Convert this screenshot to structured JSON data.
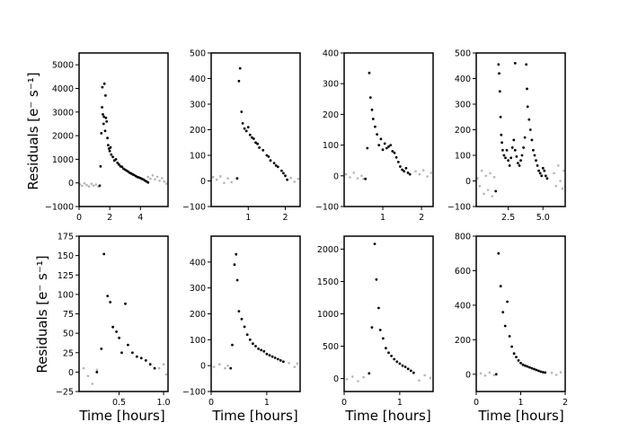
{
  "figure": {
    "ylabel_top": "Residuals [e⁻ s⁻¹]",
    "ylabel_bottom": "Residuals [e⁻ s⁻¹]",
    "xlabel": "Time [hours]"
  },
  "chart_data": [
    {
      "type": "scatter",
      "panel": "top-1",
      "xlim": [
        0,
        5.8
      ],
      "ylim": [
        -1000,
        5500
      ],
      "xticks": [
        0,
        2,
        4
      ],
      "xticklabels": [
        "0",
        "2",
        "4"
      ],
      "yticks": [
        -1000,
        0,
        1000,
        2000,
        3000,
        4000,
        5000
      ],
      "yticklabels": [
        "−1000",
        "0",
        "1000",
        "2000",
        "3000",
        "4000",
        "5000"
      ],
      "baseline": [
        [
          0.05,
          -60
        ],
        [
          0.2,
          -130
        ],
        [
          0.35,
          -20
        ],
        [
          0.5,
          -90
        ],
        [
          0.65,
          -150
        ],
        [
          0.8,
          -40
        ],
        [
          0.95,
          -120
        ],
        [
          1.1,
          -70
        ],
        [
          1.25,
          -160
        ],
        [
          4.5,
          250
        ],
        [
          4.65,
          180
        ],
        [
          4.8,
          320
        ],
        [
          4.95,
          150
        ],
        [
          5.1,
          260
        ],
        [
          5.25,
          90
        ],
        [
          5.4,
          200
        ],
        [
          5.55,
          60
        ],
        [
          5.7,
          -30
        ]
      ],
      "event": [
        [
          1.35,
          -120
        ],
        [
          1.4,
          700
        ],
        [
          1.45,
          2100
        ],
        [
          1.5,
          3200
        ],
        [
          1.52,
          4050
        ],
        [
          1.55,
          2900
        ],
        [
          1.6,
          2500
        ],
        [
          1.62,
          2800
        ],
        [
          1.65,
          4200
        ],
        [
          1.7,
          2200
        ],
        [
          1.72,
          3700
        ],
        [
          1.75,
          2750
        ],
        [
          1.8,
          2600
        ],
        [
          1.85,
          1900
        ],
        [
          1.9,
          1600
        ],
        [
          1.95,
          1450
        ],
        [
          2.0,
          1350
        ],
        [
          2.05,
          1500
        ],
        [
          2.1,
          1200
        ],
        [
          2.2,
          1100
        ],
        [
          2.3,
          950
        ],
        [
          2.4,
          1000
        ],
        [
          2.5,
          850
        ],
        [
          2.6,
          780
        ],
        [
          2.7,
          700
        ],
        [
          2.8,
          680
        ],
        [
          2.9,
          600
        ],
        [
          3.0,
          560
        ],
        [
          3.1,
          520
        ],
        [
          3.2,
          480
        ],
        [
          3.3,
          430
        ],
        [
          3.4,
          400
        ],
        [
          3.5,
          360
        ],
        [
          3.6,
          330
        ],
        [
          3.7,
          290
        ],
        [
          3.8,
          250
        ],
        [
          3.9,
          230
        ],
        [
          4.0,
          200
        ],
        [
          4.1,
          170
        ],
        [
          4.2,
          140
        ],
        [
          4.3,
          100
        ],
        [
          4.4,
          60
        ],
        [
          4.5,
          20
        ]
      ]
    },
    {
      "type": "scatter",
      "panel": "top-2",
      "xlim": [
        0,
        2.4
      ],
      "ylim": [
        -100,
        500
      ],
      "xticks": [
        1,
        2
      ],
      "xticklabels": [
        "1",
        "2"
      ],
      "yticks": [
        -100,
        0,
        100,
        200,
        300,
        400,
        500
      ],
      "yticklabels": [
        "−100",
        "0",
        "100",
        "200",
        "300",
        "400",
        "500"
      ],
      "baseline": [
        [
          0.05,
          15
        ],
        [
          0.15,
          5
        ],
        [
          0.25,
          18
        ],
        [
          0.35,
          -8
        ],
        [
          0.45,
          10
        ],
        [
          0.55,
          -5
        ],
        [
          2.15,
          12
        ],
        [
          2.25,
          -3
        ],
        [
          2.35,
          8
        ]
      ],
      "event": [
        [
          0.7,
          10
        ],
        [
          0.75,
          390
        ],
        [
          0.78,
          440
        ],
        [
          0.82,
          270
        ],
        [
          0.85,
          225
        ],
        [
          0.9,
          205
        ],
        [
          0.95,
          195
        ],
        [
          1.0,
          210
        ],
        [
          1.05,
          180
        ],
        [
          1.1,
          170
        ],
        [
          1.15,
          165
        ],
        [
          1.2,
          150
        ],
        [
          1.25,
          145
        ],
        [
          1.3,
          130
        ],
        [
          1.4,
          120
        ],
        [
          1.5,
          100
        ],
        [
          1.55,
          95
        ],
        [
          1.6,
          80
        ],
        [
          1.7,
          70
        ],
        [
          1.75,
          60
        ],
        [
          1.8,
          55
        ],
        [
          1.9,
          40
        ],
        [
          1.95,
          30
        ],
        [
          2.0,
          20
        ],
        [
          2.05,
          5
        ]
      ]
    },
    {
      "type": "scatter",
      "panel": "top-3",
      "xlim": [
        0,
        2.3
      ],
      "ylim": [
        -100,
        400
      ],
      "xticks": [
        1,
        2
      ],
      "xticklabels": [
        "1",
        "2"
      ],
      "yticks": [
        -100,
        0,
        100,
        200,
        300,
        400
      ],
      "yticklabels": [
        "−100",
        "0",
        "100",
        "200",
        "300",
        "400"
      ],
      "baseline": [
        [
          0.05,
          5
        ],
        [
          0.15,
          -5
        ],
        [
          0.25,
          10
        ],
        [
          0.35,
          -8
        ],
        [
          0.45,
          0
        ],
        [
          0.5,
          -10
        ],
        [
          1.85,
          15
        ],
        [
          1.95,
          5
        ],
        [
          2.05,
          18
        ],
        [
          2.15,
          -2
        ],
        [
          2.25,
          10
        ]
      ],
      "event": [
        [
          0.55,
          -10
        ],
        [
          0.6,
          90
        ],
        [
          0.65,
          335
        ],
        [
          0.68,
          255
        ],
        [
          0.72,
          215
        ],
        [
          0.75,
          185
        ],
        [
          0.8,
          160
        ],
        [
          0.85,
          135
        ],
        [
          0.9,
          100
        ],
        [
          0.95,
          120
        ],
        [
          1.0,
          85
        ],
        [
          1.05,
          105
        ],
        [
          1.1,
          90
        ],
        [
          1.15,
          95
        ],
        [
          1.2,
          100
        ],
        [
          1.25,
          80
        ],
        [
          1.3,
          75
        ],
        [
          1.35,
          60
        ],
        [
          1.4,
          45
        ],
        [
          1.45,
          30
        ],
        [
          1.5,
          20
        ],
        [
          1.55,
          15
        ],
        [
          1.6,
          25
        ],
        [
          1.65,
          10
        ],
        [
          1.7,
          5
        ]
      ]
    },
    {
      "type": "scatter",
      "panel": "top-4",
      "xlim": [
        0.2,
        6.6
      ],
      "ylim": [
        -100,
        500
      ],
      "xticks": [
        2.5,
        5.0
      ],
      "xticklabels": [
        "2.5",
        "5.0"
      ],
      "yticks": [
        -100,
        0,
        100,
        200,
        300,
        400,
        500
      ],
      "yticklabels": [
        "−100",
        "0",
        "100",
        "200",
        "300",
        "400",
        "500"
      ],
      "baseline": [
        [
          0.3,
          10
        ],
        [
          0.45,
          -20
        ],
        [
          0.6,
          40
        ],
        [
          0.75,
          -50
        ],
        [
          0.9,
          20
        ],
        [
          1.05,
          -35
        ],
        [
          1.2,
          30
        ],
        [
          1.35,
          -60
        ],
        [
          1.5,
          15
        ],
        [
          5.8,
          30
        ],
        [
          5.95,
          -20
        ],
        [
          6.1,
          60
        ],
        [
          6.25,
          0
        ],
        [
          6.4,
          -30
        ],
        [
          6.5,
          40
        ]
      ],
      "event": [
        [
          1.6,
          -40
        ],
        [
          1.8,
          455
        ],
        [
          1.85,
          420
        ],
        [
          1.9,
          350
        ],
        [
          1.95,
          250
        ],
        [
          2.0,
          180
        ],
        [
          2.05,
          150
        ],
        [
          2.1,
          120
        ],
        [
          2.2,
          100
        ],
        [
          2.3,
          90
        ],
        [
          2.4,
          120
        ],
        [
          2.5,
          80
        ],
        [
          2.6,
          60
        ],
        [
          2.7,
          90
        ],
        [
          2.8,
          130
        ],
        [
          2.9,
          160
        ],
        [
          3.0,
          120
        ],
        [
          3.1,
          95
        ],
        [
          3.2,
          70
        ],
        [
          3.3,
          60
        ],
        [
          3.4,
          80
        ],
        [
          3.5,
          100
        ],
        [
          3.6,
          130
        ],
        [
          3.7,
          170
        ],
        [
          3.8,
          455
        ],
        [
          3.85,
          360
        ],
        [
          3.9,
          290
        ],
        [
          4.0,
          240
        ],
        [
          4.1,
          200
        ],
        [
          4.2,
          160
        ],
        [
          4.3,
          120
        ],
        [
          4.4,
          100
        ],
        [
          4.5,
          80
        ],
        [
          4.6,
          60
        ],
        [
          4.7,
          40
        ],
        [
          4.8,
          30
        ],
        [
          4.9,
          20
        ],
        [
          5.0,
          50
        ],
        [
          5.1,
          40
        ],
        [
          5.2,
          20
        ],
        [
          5.3,
          10
        ],
        [
          3.0,
          460
        ]
      ]
    },
    {
      "type": "scatter",
      "panel": "bottom-1",
      "xlim": [
        0.05,
        1.05
      ],
      "ylim": [
        -25,
        175
      ],
      "xticks": [
        0.5,
        1.0
      ],
      "xticklabels": [
        "0.5",
        "1.0"
      ],
      "yticks": [
        -25,
        0,
        25,
        50,
        75,
        100,
        125,
        150,
        175
      ],
      "yticklabels": [
        "−25",
        "0",
        "25",
        "50",
        "75",
        "100",
        "125",
        "150",
        "175"
      ],
      "baseline": [
        [
          0.1,
          5
        ],
        [
          0.15,
          -5
        ],
        [
          0.2,
          -15
        ],
        [
          0.25,
          3
        ],
        [
          0.95,
          5
        ],
        [
          1.0,
          10
        ],
        [
          1.03,
          -3
        ]
      ],
      "event": [
        [
          0.25,
          0
        ],
        [
          0.3,
          30
        ],
        [
          0.33,
          152
        ],
        [
          0.37,
          98
        ],
        [
          0.4,
          90
        ],
        [
          0.43,
          58
        ],
        [
          0.47,
          52
        ],
        [
          0.5,
          44
        ],
        [
          0.53,
          25
        ],
        [
          0.57,
          88
        ],
        [
          0.6,
          35
        ],
        [
          0.65,
          25
        ],
        [
          0.7,
          20
        ],
        [
          0.75,
          18
        ],
        [
          0.8,
          15
        ],
        [
          0.85,
          10
        ],
        [
          0.9,
          5
        ]
      ]
    },
    {
      "type": "scatter",
      "panel": "bottom-2",
      "xlim": [
        0,
        1.6
      ],
      "ylim": [
        -100,
        500
      ],
      "xticks": [
        0,
        1
      ],
      "xticklabels": [
        "0",
        "1"
      ],
      "yticks": [
        -100,
        0,
        100,
        200,
        300,
        400
      ],
      "yticklabels": [
        "−100",
        "0",
        "100",
        "200",
        "300",
        "400"
      ],
      "baseline": [
        [
          0.05,
          -5
        ],
        [
          0.15,
          5
        ],
        [
          0.25,
          -10
        ],
        [
          0.3,
          0
        ],
        [
          1.4,
          10
        ],
        [
          1.5,
          -5
        ],
        [
          1.55,
          8
        ]
      ],
      "event": [
        [
          0.35,
          -10
        ],
        [
          0.38,
          80
        ],
        [
          0.42,
          390
        ],
        [
          0.45,
          430
        ],
        [
          0.47,
          330
        ],
        [
          0.5,
          210
        ],
        [
          0.55,
          180
        ],
        [
          0.6,
          150
        ],
        [
          0.65,
          120
        ],
        [
          0.7,
          100
        ],
        [
          0.75,
          85
        ],
        [
          0.8,
          75
        ],
        [
          0.85,
          65
        ],
        [
          0.9,
          60
        ],
        [
          0.95,
          55
        ],
        [
          1.0,
          45
        ],
        [
          1.05,
          40
        ],
        [
          1.1,
          35
        ],
        [
          1.15,
          30
        ],
        [
          1.2,
          25
        ],
        [
          1.25,
          20
        ],
        [
          1.3,
          15
        ]
      ]
    },
    {
      "type": "scatter",
      "panel": "bottom-3",
      "xlim": [
        0,
        1.6
      ],
      "ylim": [
        -200,
        2200
      ],
      "xticks": [
        0,
        1
      ],
      "xticklabels": [
        "0",
        "1"
      ],
      "yticks": [
        0,
        500,
        1000,
        1500,
        2000
      ],
      "yticklabels": [
        "0",
        "500",
        "1000",
        "1500",
        "2000"
      ],
      "baseline": [
        [
          0.05,
          -10
        ],
        [
          0.15,
          30
        ],
        [
          0.25,
          -40
        ],
        [
          0.35,
          20
        ],
        [
          1.35,
          -30
        ],
        [
          1.45,
          50
        ],
        [
          1.55,
          10
        ]
      ],
      "event": [
        [
          0.45,
          80
        ],
        [
          0.5,
          790
        ],
        [
          0.55,
          2080
        ],
        [
          0.58,
          1530
        ],
        [
          0.62,
          1090
        ],
        [
          0.65,
          750
        ],
        [
          0.7,
          620
        ],
        [
          0.75,
          470
        ],
        [
          0.8,
          400
        ],
        [
          0.85,
          350
        ],
        [
          0.9,
          300
        ],
        [
          0.95,
          260
        ],
        [
          1.0,
          230
        ],
        [
          1.05,
          200
        ],
        [
          1.1,
          180
        ],
        [
          1.15,
          150
        ],
        [
          1.2,
          120
        ],
        [
          1.25,
          90
        ]
      ]
    },
    {
      "type": "scatter",
      "panel": "bottom-4",
      "xlim": [
        0,
        2
      ],
      "ylim": [
        -100,
        800
      ],
      "xticks": [
        0,
        1,
        2
      ],
      "xticklabels": [
        "0",
        "1",
        "2"
      ],
      "yticks": [
        0,
        200,
        400,
        600,
        800
      ],
      "yticklabels": [
        "0",
        "200",
        "400",
        "600",
        "800"
      ],
      "baseline": [
        [
          0.1,
          5
        ],
        [
          0.2,
          -8
        ],
        [
          0.3,
          10
        ],
        [
          0.4,
          -5
        ],
        [
          1.7,
          8
        ],
        [
          1.8,
          -3
        ],
        [
          1.9,
          12
        ]
      ],
      "event": [
        [
          0.45,
          0
        ],
        [
          0.5,
          700
        ],
        [
          0.55,
          510
        ],
        [
          0.6,
          360
        ],
        [
          0.65,
          280
        ],
        [
          0.7,
          420
        ],
        [
          0.75,
          220
        ],
        [
          0.8,
          160
        ],
        [
          0.85,
          120
        ],
        [
          0.9,
          100
        ],
        [
          0.95,
          80
        ],
        [
          1.0,
          65
        ],
        [
          1.05,
          55
        ],
        [
          1.1,
          50
        ],
        [
          1.15,
          45
        ],
        [
          1.2,
          40
        ],
        [
          1.25,
          35
        ],
        [
          1.3,
          30
        ],
        [
          1.35,
          25
        ],
        [
          1.4,
          20
        ],
        [
          1.45,
          15
        ],
        [
          1.5,
          12
        ],
        [
          1.55,
          10
        ]
      ]
    }
  ]
}
